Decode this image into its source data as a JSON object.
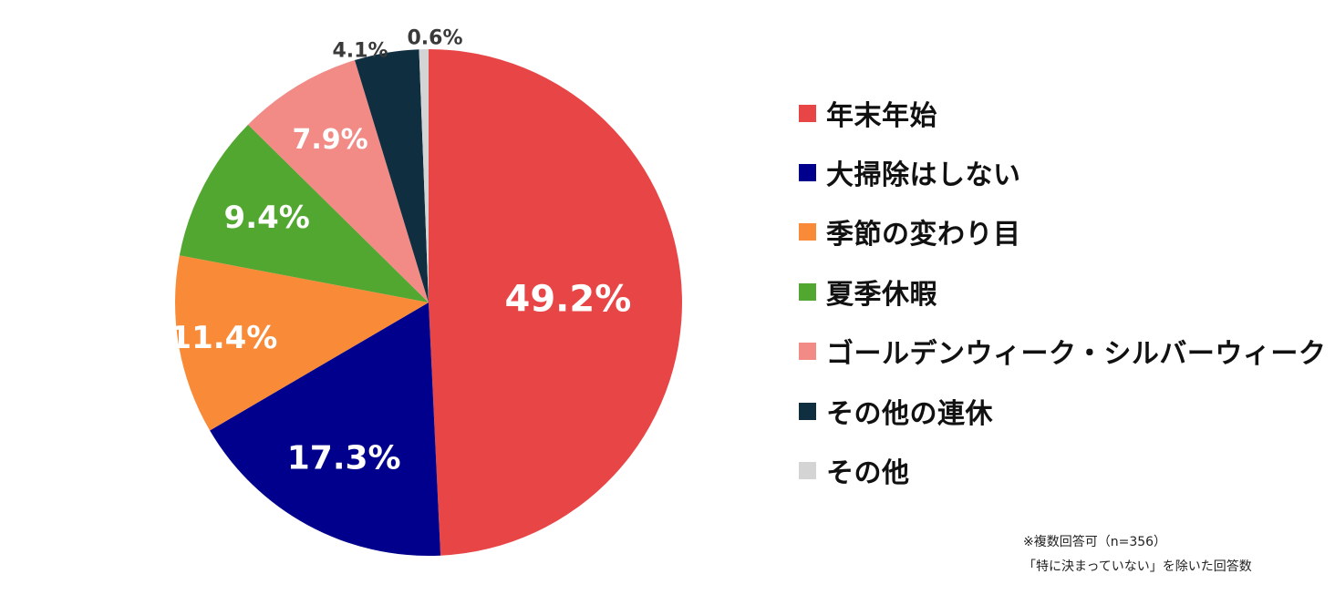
{
  "chart_data": {
    "type": "pie",
    "slices": [
      {
        "label": "年末年始",
        "value": 49.2,
        "value_label": "49.2%",
        "color": "#E84646"
      },
      {
        "label": "大掃除はしない",
        "value": 17.3,
        "value_label": "17.3%",
        "color": "#00008C"
      },
      {
        "label": "季節の変わり目",
        "value": 11.4,
        "value_label": "11.4%",
        "color": "#F98A38"
      },
      {
        "label": "夏季休暇",
        "value": 9.4,
        "value_label": "9.4%",
        "color": "#52A730"
      },
      {
        "label": "ゴールデンウィーク・シルバーウィーク",
        "value": 7.9,
        "value_label": "7.9%",
        "color": "#F28B86"
      },
      {
        "label": "その他の連休",
        "value": 4.1,
        "value_label": "4.1%",
        "color": "#0F2E40"
      },
      {
        "label": "その他",
        "value": 0.6,
        "value_label": "0.6%",
        "color": "#D4D4D4"
      }
    ],
    "legend_position": "right",
    "start_angle": "12 o'clock",
    "direction": "clockwise"
  },
  "notes": {
    "line1": "※複数回答可（n=356）",
    "line2": "「特に決まっていない」を除いた回答数"
  }
}
